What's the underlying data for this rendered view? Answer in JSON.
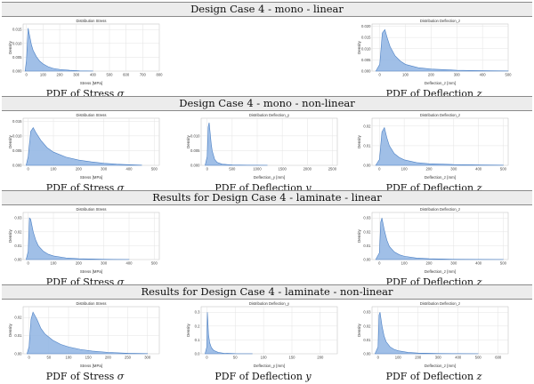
{
  "sections": [
    {
      "title": "Design Case 4 - mono - linear",
      "plots": [
        {
          "slot": 0,
          "caption": "PDF of Stress",
          "symbol": "σ",
          "chart": 0
        },
        {
          "slot": 2,
          "caption": "PDF of Deflection",
          "symbol": "z",
          "chart": 1
        }
      ]
    },
    {
      "title": "Design Case 4 - mono - non-linear",
      "plots": [
        {
          "slot": 0,
          "caption": "PDF of Stress",
          "symbol": "σ",
          "chart": 2
        },
        {
          "slot": 1,
          "caption": "PDF of Deflection",
          "symbol": "y",
          "chart": 3
        },
        {
          "slot": 2,
          "caption": "PDF of Deflection",
          "symbol": "z",
          "chart": 4
        }
      ]
    },
    {
      "title": "Results for Design Case 4 - laminate - linear",
      "plots": [
        {
          "slot": 0,
          "caption": "PDF of Stress",
          "symbol": "σ",
          "chart": 5
        },
        {
          "slot": 2,
          "caption": "PDF of Deflection",
          "symbol": "z",
          "chart": 6
        }
      ]
    },
    {
      "title": "Results for Design Case 4 - laminate - non-linear",
      "plots": [
        {
          "slot": 0,
          "caption": "PDF of Stress",
          "symbol": "σ",
          "chart": 7
        },
        {
          "slot": 1,
          "caption": "PDF of Deflection",
          "symbol": "y",
          "chart": 8
        },
        {
          "slot": 2,
          "caption": "PDF of Deflection",
          "symbol": "z",
          "chart": 9
        }
      ]
    }
  ],
  "chart_data": [
    {
      "type": "area",
      "title": "Distribution Stress",
      "xlabel": "Stress [MPa]",
      "ylabel": "Density",
      "xlim": [
        -20,
        800
      ],
      "ylim": [
        0,
        0.017
      ],
      "xticks": [
        0,
        100,
        200,
        300,
        400,
        500,
        600,
        700,
        800
      ],
      "yticks": [
        0.0,
        0.005,
        0.01,
        0.015
      ],
      "yticklabels": [
        "0.000",
        "0.005",
        "0.010",
        "0.015"
      ],
      "x": [
        -8,
        0,
        10,
        20,
        30,
        40,
        60,
        80,
        100,
        130,
        160,
        200,
        260,
        320,
        400
      ],
      "y": [
        0,
        0.004,
        0.0155,
        0.0125,
        0.0095,
        0.0075,
        0.0052,
        0.0036,
        0.0026,
        0.0016,
        0.001,
        0.0006,
        0.0003,
        0.00012,
        3e-05
      ]
    },
    {
      "type": "area",
      "title": "Distribution Deflection_z",
      "xlabel": "Deflection_z [mm]",
      "ylabel": "Density",
      "xlim": [
        -30,
        500
      ],
      "ylim": [
        0,
        0.021
      ],
      "xticks": [
        0,
        100,
        200,
        300,
        400,
        500
      ],
      "yticks": [
        0.0,
        0.005,
        0.01,
        0.015,
        0.02
      ],
      "yticklabels": [
        "0.000",
        "0.005",
        "0.010",
        "0.015",
        "0.020"
      ],
      "x": [
        -15,
        0,
        10,
        20,
        30,
        40,
        60,
        80,
        100,
        150,
        200,
        300,
        400,
        500
      ],
      "y": [
        0,
        0.003,
        0.017,
        0.0185,
        0.0145,
        0.011,
        0.0068,
        0.0045,
        0.003,
        0.0015,
        0.0009,
        0.0004,
        0.0002,
        8e-05
      ]
    },
    {
      "type": "area",
      "title": "Distribution Stress",
      "xlabel": "Stress [MPa]",
      "ylabel": "Density",
      "xlim": [
        -20,
        520
      ],
      "ylim": [
        0,
        0.016
      ],
      "xticks": [
        0,
        100,
        200,
        300,
        400,
        500
      ],
      "yticks": [
        0.0,
        0.005,
        0.01,
        0.015
      ],
      "yticklabels": [
        "0.000",
        "0.005",
        "0.010",
        "0.015"
      ],
      "x": [
        -8,
        0,
        10,
        20,
        30,
        50,
        75,
        100,
        150,
        200,
        250,
        300,
        350,
        400,
        450
      ],
      "y": [
        0,
        0.003,
        0.0115,
        0.0128,
        0.0112,
        0.0085,
        0.006,
        0.0045,
        0.0028,
        0.0018,
        0.0012,
        0.0007,
        0.0004,
        0.0002,
        5e-05
      ]
    },
    {
      "type": "area",
      "title": "Distribution Deflection_y",
      "xlabel": "Deflection_y [mm]",
      "ylabel": "Density",
      "xlim": [
        -120,
        2600
      ],
      "ylim": [
        0,
        0.016
      ],
      "xticks": [
        0,
        500,
        1000,
        1500,
        2000,
        2500
      ],
      "yticks": [
        0.0,
        0.005,
        0.01
      ],
      "yticklabels": [
        "0.000",
        "0.005",
        "0.010"
      ],
      "x": [
        -40,
        0,
        20,
        40,
        60,
        80,
        100,
        150,
        200,
        300,
        500,
        800,
        1200
      ],
      "y": [
        0,
        0.003,
        0.013,
        0.0145,
        0.011,
        0.0075,
        0.005,
        0.002,
        0.001,
        0.0004,
        0.00015,
        5e-05,
        1e-05
      ]
    },
    {
      "type": "area",
      "title": "Distribution Deflection_z",
      "xlabel": "Deflection_z [mm]",
      "ylabel": "Density",
      "xlim": [
        -30,
        520
      ],
      "ylim": [
        0,
        0.024
      ],
      "xticks": [
        0,
        100,
        200,
        300,
        400,
        500
      ],
      "yticks": [
        0.0,
        0.01,
        0.02
      ],
      "yticklabels": [
        "0.00",
        "0.01",
        "0.02"
      ],
      "x": [
        -15,
        0,
        10,
        20,
        30,
        40,
        60,
        80,
        100,
        150,
        200,
        300,
        400,
        500
      ],
      "y": [
        0,
        0.003,
        0.017,
        0.0192,
        0.014,
        0.01,
        0.006,
        0.004,
        0.0028,
        0.0014,
        0.0008,
        0.0004,
        0.0002,
        0.0001
      ]
    },
    {
      "type": "area",
      "title": "Distribution Stress",
      "xlabel": "Stress [MPa]",
      "ylabel": "Density",
      "xlim": [
        -20,
        520
      ],
      "ylim": [
        0,
        0.034
      ],
      "xticks": [
        0,
        100,
        200,
        300,
        400,
        500
      ],
      "yticks": [
        0.0,
        0.01,
        0.02,
        0.03
      ],
      "yticklabels": [
        "0.00",
        "0.01",
        "0.02",
        "0.03"
      ],
      "x": [
        -8,
        0,
        5,
        10,
        20,
        30,
        40,
        60,
        80,
        100,
        150,
        200,
        300,
        400
      ],
      "y": [
        0,
        0.006,
        0.03,
        0.029,
        0.02,
        0.014,
        0.01,
        0.006,
        0.0038,
        0.0026,
        0.0012,
        0.0006,
        0.0002,
        5e-05
      ]
    },
    {
      "type": "area",
      "title": "Distribution Deflection_z",
      "xlabel": "Deflection_z [mm]",
      "ylabel": "Density",
      "xlim": [
        -30,
        520
      ],
      "ylim": [
        0,
        0.034
      ],
      "xticks": [
        0,
        100,
        200,
        300,
        400,
        500
      ],
      "yticks": [
        0.0,
        0.01,
        0.02,
        0.03
      ],
      "yticklabels": [
        "0.00",
        "0.01",
        "0.02",
        "0.03"
      ],
      "x": [
        -15,
        0,
        5,
        10,
        20,
        30,
        40,
        60,
        80,
        100,
        150,
        200,
        300,
        400,
        500
      ],
      "y": [
        0,
        0.005,
        0.027,
        0.03,
        0.021,
        0.014,
        0.0095,
        0.0055,
        0.0035,
        0.0024,
        0.0011,
        0.0006,
        0.0002,
        0.0001,
        4e-05
      ]
    },
    {
      "type": "area",
      "title": "Distribution Stress",
      "xlabel": "Stress [MPa]",
      "ylabel": "Density",
      "xlim": [
        -15,
        330
      ],
      "ylim": [
        0,
        0.026
      ],
      "xticks": [
        0,
        50,
        100,
        150,
        200,
        250,
        300
      ],
      "yticks": [
        0.0,
        0.01,
        0.02
      ],
      "yticklabels": [
        "0.00",
        "0.01",
        "0.02"
      ],
      "x": [
        -5,
        0,
        5,
        10,
        20,
        30,
        40,
        60,
        80,
        100,
        130,
        160,
        200,
        250,
        300
      ],
      "y": [
        0,
        0.004,
        0.019,
        0.023,
        0.019,
        0.014,
        0.011,
        0.0075,
        0.0052,
        0.0038,
        0.0024,
        0.0015,
        0.0008,
        0.0003,
        8e-05
      ]
    },
    {
      "type": "area",
      "title": "Distribution Deflection_y",
      "xlabel": "Deflection_y [mm]",
      "ylabel": "Density",
      "xlim": [
        -10,
        230
      ],
      "ylim": [
        0,
        0.34
      ],
      "xticks": [
        0,
        50,
        100,
        150,
        200
      ],
      "yticks": [
        0.0,
        0.1,
        0.2,
        0.3
      ],
      "yticklabels": [
        "0.0",
        "0.1",
        "0.2",
        "0.3"
      ],
      "x": [
        -3,
        0,
        1,
        2,
        3,
        5,
        8,
        12,
        20,
        30,
        50,
        80
      ],
      "y": [
        0,
        0.05,
        0.3,
        0.22,
        0.14,
        0.08,
        0.045,
        0.025,
        0.01,
        0.004,
        0.001,
        0.0002
      ]
    },
    {
      "type": "area",
      "title": "Distribution Deflection_z",
      "xlabel": "Deflection_z [mm]",
      "ylabel": "Density",
      "xlim": [
        -30,
        650
      ],
      "ylim": [
        0,
        0.034
      ],
      "xticks": [
        0,
        100,
        200,
        300,
        400,
        500,
        600
      ],
      "yticks": [
        0.0,
        0.01,
        0.02,
        0.03
      ],
      "yticklabels": [
        "0.00",
        "0.01",
        "0.02",
        "0.03"
      ],
      "x": [
        -15,
        0,
        5,
        10,
        20,
        30,
        40,
        60,
        80,
        100,
        150,
        200,
        300,
        400,
        500
      ],
      "y": [
        0,
        0.005,
        0.028,
        0.03,
        0.02,
        0.013,
        0.0088,
        0.005,
        0.0032,
        0.0022,
        0.001,
        0.0005,
        0.0002,
        0.0001,
        4e-05
      ]
    }
  ]
}
